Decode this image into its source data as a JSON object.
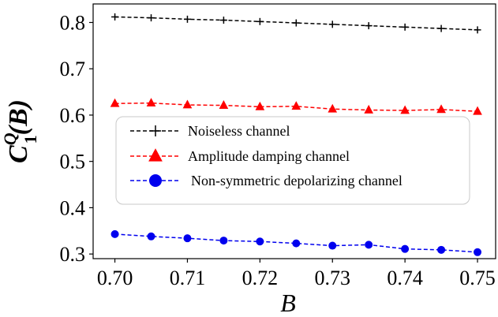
{
  "chart_data": {
    "type": "line",
    "title": "",
    "xlabel": "B",
    "ylabel": {
      "base": "C",
      "sup": "Q",
      "sub": "1",
      "arg": "(B)"
    },
    "xlim": [
      0.697,
      0.7525
    ],
    "ylim": [
      0.29,
      0.84
    ],
    "xticks": [
      0.7,
      0.71,
      0.72,
      0.73,
      0.74,
      0.75
    ],
    "xtick_labels": [
      "0.70",
      "0.71",
      "0.72",
      "0.73",
      "0.74",
      "0.75"
    ],
    "yticks": [
      0.3,
      0.4,
      0.5,
      0.6,
      0.7,
      0.8
    ],
    "ytick_labels": [
      "0.3",
      "0.4",
      "0.5",
      "0.6",
      "0.7",
      "0.8"
    ],
    "grid": false,
    "legend_position": "center",
    "x": [
      0.7,
      0.705,
      0.71,
      0.715,
      0.72,
      0.725,
      0.73,
      0.735,
      0.74,
      0.745,
      0.75
    ],
    "series": [
      {
        "name": "Noiseless channel",
        "color": "#000000",
        "marker": "plus",
        "values": [
          0.812,
          0.81,
          0.807,
          0.805,
          0.802,
          0.799,
          0.796,
          0.793,
          0.79,
          0.787,
          0.784
        ]
      },
      {
        "name": "Amplitude damping channel",
        "color": "#ff0000",
        "marker": "triangle",
        "values": [
          0.625,
          0.626,
          0.622,
          0.621,
          0.618,
          0.619,
          0.613,
          0.611,
          0.61,
          0.612,
          0.608
        ]
      },
      {
        "name": "Non-symmetric depolarizing channel",
        "color": "#0000ee",
        "marker": "circle",
        "values": [
          0.343,
          0.338,
          0.334,
          0.329,
          0.327,
          0.323,
          0.318,
          0.32,
          0.311,
          0.309,
          0.304
        ]
      }
    ]
  }
}
